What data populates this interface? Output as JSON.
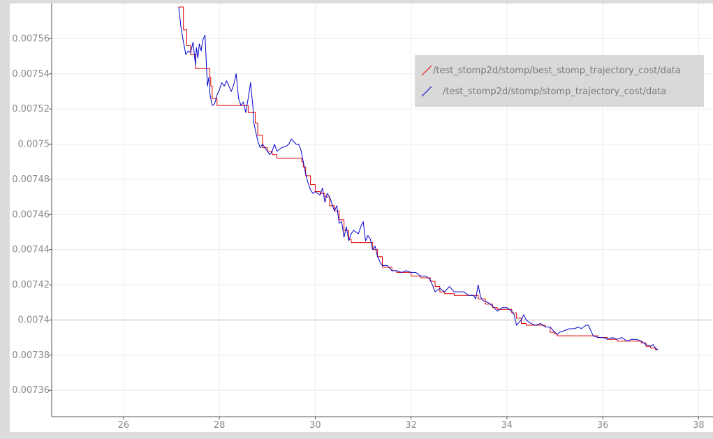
{
  "chart_data": {
    "type": "line",
    "title": "",
    "xlabel": "",
    "ylabel": "",
    "xlim": [
      24.5,
      38.3
    ],
    "ylim": [
      0.007345,
      0.00758
    ],
    "x_ticks": [
      26,
      28,
      30,
      32,
      34,
      36,
      38
    ],
    "x_tick_labels": [
      "26",
      "28",
      "30",
      "32",
      "34",
      "36",
      "38"
    ],
    "y_ticks": [
      0.00736,
      0.00738,
      0.0074,
      0.00742,
      0.00744,
      0.00746,
      0.00748,
      0.0075,
      0.00752,
      0.00754,
      0.00756
    ],
    "y_tick_labels": [
      "0.00736",
      "0.00738",
      "0.0074",
      "0.00742",
      "0.00744",
      "0.00746",
      "0.00748",
      "0.0075",
      "0.00752",
      "0.00754",
      "0.00756"
    ],
    "grid": true,
    "highlight_y": 0.0074,
    "legend_position": "top-right",
    "series": [
      {
        "name": "/test_stomp2d/stomp/best_stomp_trajectory_cost/data",
        "color": "#e00000",
        "x": [
          27.15,
          27.25,
          27.32,
          27.4,
          27.48,
          27.5,
          27.55,
          27.6,
          27.75,
          27.8,
          27.82,
          27.85,
          27.95,
          28.0,
          28.2,
          28.4,
          28.55,
          28.6,
          28.7,
          28.75,
          28.8,
          28.9,
          29.0,
          29.1,
          29.2,
          29.3,
          29.5,
          29.7,
          29.72,
          29.75,
          29.8,
          29.9,
          30.0,
          30.1,
          30.2,
          30.3,
          30.4,
          30.45,
          30.5,
          30.6,
          30.7,
          30.75,
          30.8,
          30.9,
          31.0,
          31.1,
          31.2,
          31.3,
          31.4,
          31.5,
          31.6,
          31.7,
          31.8,
          32.0,
          32.2,
          32.4,
          32.5,
          32.6,
          32.7,
          32.8,
          32.9,
          33.0,
          33.2,
          33.4,
          33.55,
          33.7,
          33.8,
          33.9,
          34.0,
          34.1,
          34.2,
          34.3,
          34.4,
          34.5,
          34.6,
          34.8,
          34.9,
          35.0,
          35.05,
          35.2,
          35.5,
          35.8,
          35.9,
          36.0,
          36.1,
          36.3,
          36.5,
          36.7,
          36.8,
          36.9,
          37.0,
          37.1,
          37.15
        ],
        "y": [
          0.007578,
          0.007565,
          0.007556,
          0.007551,
          0.007551,
          0.007543,
          0.007543,
          0.007543,
          0.007543,
          0.007538,
          0.007533,
          0.007526,
          0.007522,
          0.007522,
          0.007522,
          0.007522,
          0.007522,
          0.007518,
          0.007518,
          0.007512,
          0.007505,
          0.007498,
          0.007496,
          0.007494,
          0.007492,
          0.007492,
          0.007492,
          0.007492,
          0.00749,
          0.007487,
          0.007482,
          0.007477,
          0.007473,
          0.007472,
          0.00747,
          0.007465,
          0.007462,
          0.007462,
          0.007457,
          0.007451,
          0.007446,
          0.007444,
          0.007444,
          0.007444,
          0.007444,
          0.007444,
          0.00744,
          0.007436,
          0.00743,
          0.00743,
          0.007428,
          0.007427,
          0.007427,
          0.007425,
          0.007424,
          0.007422,
          0.007419,
          0.007416,
          0.007415,
          0.007415,
          0.007414,
          0.007414,
          0.007414,
          0.007412,
          0.007409,
          0.007407,
          0.007406,
          0.007406,
          0.007406,
          0.007404,
          0.007401,
          0.007398,
          0.007397,
          0.007397,
          0.007397,
          0.007396,
          0.007393,
          0.007392,
          0.007391,
          0.007391,
          0.007391,
          0.007391,
          0.00739,
          0.00739,
          0.007389,
          0.007388,
          0.007388,
          0.007388,
          0.007387,
          0.007385,
          0.007384,
          0.007383,
          0.007383
        ]
      },
      {
        "name": "/test_stomp2d/stomp/stomp_trajectory_cost/data",
        "color": "#0000cc",
        "x": [
          27.15,
          27.2,
          27.25,
          27.3,
          27.35,
          27.4,
          27.45,
          27.5,
          27.52,
          27.55,
          27.58,
          27.62,
          27.65,
          27.7,
          27.75,
          27.78,
          27.8,
          27.82,
          27.85,
          27.9,
          27.95,
          28.0,
          28.05,
          28.1,
          28.15,
          28.2,
          28.25,
          28.3,
          28.35,
          28.4,
          28.45,
          28.5,
          28.55,
          28.6,
          28.65,
          28.7,
          28.72,
          28.75,
          28.8,
          28.85,
          28.9,
          29.0,
          29.05,
          29.1,
          29.15,
          29.2,
          29.3,
          29.4,
          29.45,
          29.5,
          29.6,
          29.65,
          29.7,
          29.75,
          29.8,
          29.85,
          29.9,
          29.95,
          30.0,
          30.1,
          30.15,
          30.2,
          30.25,
          30.3,
          30.35,
          30.4,
          30.45,
          30.5,
          30.55,
          30.6,
          30.65,
          30.7,
          30.75,
          30.8,
          30.85,
          30.9,
          30.95,
          31.0,
          31.05,
          31.1,
          31.15,
          31.2,
          31.25,
          31.3,
          31.35,
          31.4,
          31.5,
          31.6,
          31.7,
          31.8,
          31.9,
          32.0,
          32.1,
          32.2,
          32.3,
          32.4,
          32.5,
          32.6,
          32.7,
          32.8,
          32.9,
          33.0,
          33.1,
          33.2,
          33.3,
          33.35,
          33.4,
          33.45,
          33.5,
          33.6,
          33.7,
          33.8,
          33.9,
          34.0,
          34.1,
          34.15,
          34.2,
          34.3,
          34.35,
          34.4,
          34.5,
          34.6,
          34.7,
          34.8,
          34.9,
          35.0,
          35.05,
          35.1,
          35.2,
          35.3,
          35.4,
          35.5,
          35.55,
          35.6,
          35.65,
          35.7,
          35.8,
          35.9,
          36.0,
          36.1,
          36.2,
          36.3,
          36.4,
          36.5,
          36.6,
          36.7,
          36.8,
          36.9,
          37.0,
          37.05,
          37.1,
          37.15
        ],
        "y": [
          0.007578,
          0.007566,
          0.007558,
          0.007551,
          0.007553,
          0.007552,
          0.007558,
          0.007545,
          0.007555,
          0.007549,
          0.007557,
          0.007553,
          0.007559,
          0.007562,
          0.007533,
          0.007538,
          0.007529,
          0.007526,
          0.007522,
          0.007523,
          0.007528,
          0.007531,
          0.007535,
          0.007533,
          0.007536,
          0.007533,
          0.00753,
          0.007534,
          0.00754,
          0.007526,
          0.007522,
          0.007524,
          0.007518,
          0.007526,
          0.007535,
          0.007521,
          0.007512,
          0.007508,
          0.007502,
          0.007498,
          0.0075,
          0.007496,
          0.007494,
          0.007496,
          0.0075,
          0.007496,
          0.007498,
          0.007499,
          0.0075,
          0.007503,
          0.0075,
          0.0075,
          0.007497,
          0.00749,
          0.007483,
          0.007478,
          0.007474,
          0.007472,
          0.007473,
          0.007471,
          0.007475,
          0.007467,
          0.007472,
          0.00747,
          0.007466,
          0.007462,
          0.007465,
          0.007455,
          0.007456,
          0.007447,
          0.007453,
          0.007445,
          0.007449,
          0.007451,
          0.00745,
          0.007449,
          0.007453,
          0.007456,
          0.007445,
          0.007448,
          0.007446,
          0.00744,
          0.007442,
          0.007436,
          0.007433,
          0.007431,
          0.007431,
          0.007428,
          0.007428,
          0.007427,
          0.007428,
          0.007427,
          0.007427,
          0.007425,
          0.007425,
          0.007423,
          0.007416,
          0.007418,
          0.007416,
          0.007419,
          0.007416,
          0.007416,
          0.007416,
          0.007414,
          0.007414,
          0.007412,
          0.00742,
          0.007413,
          0.007411,
          0.00741,
          0.007408,
          0.007405,
          0.007407,
          0.007407,
          0.007405,
          0.007403,
          0.007397,
          0.0074,
          0.007403,
          0.0074,
          0.007398,
          0.007397,
          0.007398,
          0.007396,
          0.007396,
          0.007393,
          0.007392,
          0.007393,
          0.007394,
          0.007395,
          0.007395,
          0.007396,
          0.007395,
          0.007396,
          0.007397,
          0.007397,
          0.007391,
          0.00739,
          0.00739,
          0.007389,
          0.00739,
          0.007389,
          0.00739,
          0.007388,
          0.007389,
          0.007389,
          0.007388,
          0.007386,
          0.007385,
          0.007386,
          0.007384,
          0.007383
        ]
      }
    ]
  }
}
